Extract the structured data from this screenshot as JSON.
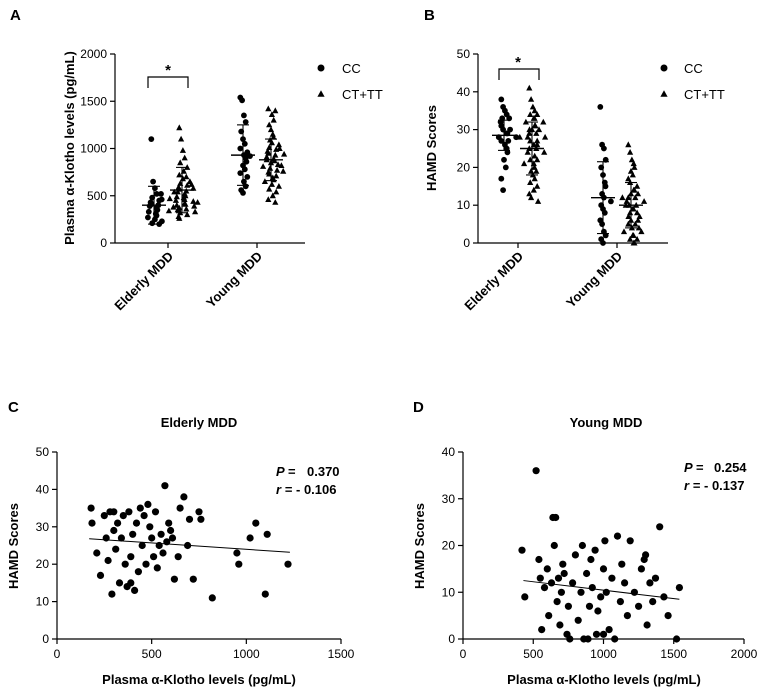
{
  "chart_data": [
    {
      "panel": "A",
      "type": "scatter",
      "subtype": "dot-plot",
      "title": "",
      "ylabel": "Plasma α-Klotho levels (pg/mL)",
      "ylim": [
        0,
        2000
      ],
      "yticks": [
        0,
        500,
        1000,
        1500,
        2000
      ],
      "categories": [
        "Elderly MDD",
        "Young MDD"
      ],
      "legend": [
        "CC",
        "CT+TT"
      ],
      "significance": "*",
      "groups": [
        {
          "category": "Elderly MDD",
          "series": "CC",
          "marker": "circle",
          "mean": 400,
          "sd": 200,
          "values": [
            1100,
            650,
            580,
            520,
            480,
            450,
            430,
            410,
            400,
            390,
            370,
            350,
            330,
            310,
            290,
            270,
            250,
            230,
            210,
            200,
            520,
            460
          ]
        },
        {
          "category": "Elderly MDD",
          "series": "CT+TT",
          "marker": "triangle",
          "mean": 560,
          "sd": 240,
          "values": [
            1220,
            1100,
            980,
            900,
            850,
            800,
            760,
            720,
            700,
            680,
            650,
            630,
            610,
            590,
            570,
            550,
            540,
            520,
            500,
            490,
            480,
            460,
            450,
            440,
            420,
            410,
            400,
            390,
            370,
            360,
            350,
            330,
            320,
            300,
            280,
            260,
            620,
            580,
            540,
            470,
            430,
            380,
            340
          ]
        },
        {
          "category": "Young MDD",
          "series": "CC",
          "marker": "circle",
          "mean": 930,
          "sd": 320,
          "values": [
            1540,
            1510,
            1350,
            1280,
            1180,
            1100,
            1050,
            1000,
            960,
            930,
            900,
            860,
            820,
            780,
            740,
            700,
            650,
            600,
            560,
            530,
            920
          ]
        },
        {
          "category": "Young MDD",
          "series": "CT+TT",
          "marker": "triangle",
          "mean": 880,
          "sd": 220,
          "values": [
            1420,
            1400,
            1360,
            1300,
            1250,
            1200,
            1150,
            1120,
            1090,
            1060,
            1040,
            1010,
            990,
            970,
            950,
            930,
            910,
            890,
            870,
            850,
            830,
            810,
            790,
            770,
            750,
            730,
            710,
            690,
            670,
            650,
            620,
            600,
            570,
            540,
            500,
            460,
            430,
            880,
            940,
            1000,
            820,
            760
          ]
        }
      ]
    },
    {
      "panel": "B",
      "type": "scatter",
      "subtype": "dot-plot",
      "title": "",
      "ylabel": "HAMD Scores",
      "ylim": [
        0,
        50
      ],
      "yticks": [
        0,
        10,
        20,
        30,
        40,
        50
      ],
      "categories": [
        "Elderly MDD",
        "Young MDD"
      ],
      "legend": [
        "CC",
        "CT+TT"
      ],
      "significance": "*",
      "groups": [
        {
          "category": "Elderly MDD",
          "series": "CC",
          "marker": "circle",
          "mean": 28.5,
          "sd": 4,
          "values": [
            38,
            36,
            35,
            34,
            33,
            33,
            32,
            31,
            30,
            30,
            29,
            29,
            28,
            28,
            27,
            27,
            26,
            25,
            24,
            22,
            20,
            17,
            14
          ]
        },
        {
          "category": "Elderly MDD",
          "series": "CT+TT",
          "marker": "triangle",
          "mean": 25,
          "sd": 7,
          "values": [
            41,
            38,
            36,
            35,
            34,
            34,
            33,
            33,
            32,
            32,
            31,
            31,
            30,
            30,
            29,
            29,
            28,
            28,
            27,
            27,
            26,
            25,
            25,
            24,
            23,
            22,
            22,
            21,
            20,
            19,
            18,
            17,
            16,
            15,
            14,
            13,
            12,
            11,
            30,
            28,
            26,
            24,
            21,
            19
          ]
        },
        {
          "category": "Young MDD",
          "series": "CC",
          "marker": "circle",
          "mean": 12,
          "sd": 9.5,
          "values": [
            36,
            26,
            25,
            22,
            20,
            18,
            16,
            15,
            13,
            12,
            11,
            10,
            9,
            8,
            6,
            5,
            3,
            2,
            1,
            0
          ]
        },
        {
          "category": "Young MDD",
          "series": "CT+TT",
          "marker": "triangle",
          "mean": 10,
          "sd": 6,
          "values": [
            26,
            24,
            22,
            21,
            20,
            19,
            18,
            17,
            16,
            15,
            14,
            14,
            13,
            13,
            12,
            12,
            11,
            11,
            10,
            10,
            9,
            9,
            8,
            8,
            7,
            7,
            6,
            6,
            5,
            5,
            4,
            4,
            3,
            3,
            2,
            2,
            1,
            1,
            0,
            0,
            10,
            12
          ]
        }
      ]
    },
    {
      "panel": "C",
      "type": "scatter",
      "title": "Elderly MDD",
      "xlabel": "Plasma α-Klotho  levels (pg/mL)",
      "ylabel": "HAMD Scores",
      "xlim": [
        0,
        1500
      ],
      "ylim": [
        0,
        50
      ],
      "xticks": [
        0,
        500,
        1000,
        1500
      ],
      "yticks": [
        0,
        10,
        20,
        30,
        40,
        50
      ],
      "stats": {
        "p_label": "P =",
        "p_value": "0.370",
        "r_label": "r =",
        "r_value": "- 0.106"
      },
      "trendline": {
        "x": [
          170,
          1230
        ],
        "y": [
          26.8,
          23.2
        ]
      },
      "points": [
        [
          180,
          35
        ],
        [
          185,
          31
        ],
        [
          210,
          23
        ],
        [
          230,
          17
        ],
        [
          250,
          33
        ],
        [
          260,
          27
        ],
        [
          270,
          21
        ],
        [
          280,
          34
        ],
        [
          290,
          12
        ],
        [
          300,
          34
        ],
        [
          300,
          29
        ],
        [
          310,
          24
        ],
        [
          320,
          31
        ],
        [
          330,
          15
        ],
        [
          340,
          27
        ],
        [
          350,
          33
        ],
        [
          360,
          20
        ],
        [
          370,
          14
        ],
        [
          380,
          34
        ],
        [
          390,
          22
        ],
        [
          390,
          15
        ],
        [
          400,
          28
        ],
        [
          410,
          13
        ],
        [
          420,
          31
        ],
        [
          430,
          18
        ],
        [
          440,
          35
        ],
        [
          450,
          25
        ],
        [
          460,
          33
        ],
        [
          470,
          20
        ],
        [
          480,
          36
        ],
        [
          490,
          30
        ],
        [
          500,
          27
        ],
        [
          510,
          22
        ],
        [
          520,
          34
        ],
        [
          530,
          19
        ],
        [
          540,
          25
        ],
        [
          550,
          28
        ],
        [
          560,
          23
        ],
        [
          570,
          41
        ],
        [
          580,
          26
        ],
        [
          590,
          31
        ],
        [
          600,
          29
        ],
        [
          610,
          27
        ],
        [
          620,
          16
        ],
        [
          640,
          22
        ],
        [
          650,
          35
        ],
        [
          670,
          38
        ],
        [
          690,
          25
        ],
        [
          700,
          32
        ],
        [
          720,
          16
        ],
        [
          750,
          34
        ],
        [
          760,
          32
        ],
        [
          820,
          11
        ],
        [
          950,
          23
        ],
        [
          960,
          20
        ],
        [
          1020,
          27
        ],
        [
          1050,
          31
        ],
        [
          1100,
          12
        ],
        [
          1110,
          28
        ],
        [
          1220,
          20
        ]
      ]
    },
    {
      "panel": "D",
      "type": "scatter",
      "title": "Young MDD",
      "xlabel": "Plasma α-Klotho  levels (pg/mL)",
      "ylabel": "HAMD Scores",
      "xlim": [
        0,
        2000
      ],
      "ylim": [
        0,
        40
      ],
      "xticks": [
        0,
        500,
        1000,
        1500,
        2000
      ],
      "yticks": [
        0,
        10,
        20,
        30,
        40
      ],
      "stats": {
        "p_label": "P =",
        "p_value": "0.254",
        "r_label": "r =",
        "r_value": "- 0.137"
      },
      "trendline": {
        "x": [
          430,
          1540
        ],
        "y": [
          12.5,
          8.5
        ]
      },
      "points": [
        [
          420,
          19
        ],
        [
          440,
          9
        ],
        [
          520,
          36
        ],
        [
          540,
          17
        ],
        [
          550,
          13
        ],
        [
          560,
          2
        ],
        [
          580,
          11
        ],
        [
          600,
          15
        ],
        [
          610,
          5
        ],
        [
          630,
          12
        ],
        [
          640,
          26
        ],
        [
          650,
          20
        ],
        [
          660,
          26
        ],
        [
          670,
          8
        ],
        [
          680,
          13
        ],
        [
          690,
          3
        ],
        [
          700,
          10
        ],
        [
          710,
          16
        ],
        [
          720,
          14
        ],
        [
          740,
          1
        ],
        [
          750,
          7
        ],
        [
          760,
          0
        ],
        [
          780,
          12
        ],
        [
          800,
          18
        ],
        [
          820,
          4
        ],
        [
          840,
          10
        ],
        [
          850,
          20
        ],
        [
          860,
          0
        ],
        [
          880,
          14
        ],
        [
          890,
          0
        ],
        [
          900,
          7
        ],
        [
          910,
          17
        ],
        [
          920,
          11
        ],
        [
          940,
          19
        ],
        [
          950,
          1
        ],
        [
          960,
          6
        ],
        [
          980,
          9
        ],
        [
          1000,
          15
        ],
        [
          1010,
          21
        ],
        [
          1020,
          10
        ],
        [
          1040,
          2
        ],
        [
          1060,
          13
        ],
        [
          1080,
          0
        ],
        [
          1100,
          22
        ],
        [
          1120,
          8
        ],
        [
          1130,
          16
        ],
        [
          1150,
          12
        ],
        [
          1170,
          5
        ],
        [
          1190,
          21
        ],
        [
          1220,
          10
        ],
        [
          1250,
          7
        ],
        [
          1270,
          15
        ],
        [
          1290,
          17
        ],
        [
          1310,
          3
        ],
        [
          1330,
          12
        ],
        [
          1350,
          8
        ],
        [
          1370,
          13
        ],
        [
          1400,
          24
        ],
        [
          1430,
          9
        ],
        [
          1460,
          5
        ],
        [
          1520,
          0
        ],
        [
          1540,
          11
        ],
        [
          1300,
          18
        ],
        [
          1000,
          1
        ]
      ]
    }
  ]
}
